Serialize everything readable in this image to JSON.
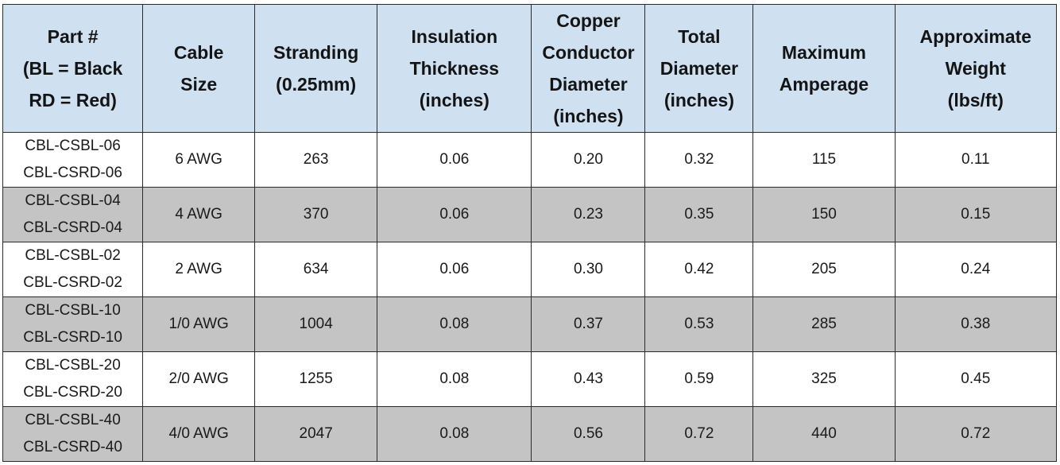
{
  "table": {
    "headers": [
      "Part #\n(BL = Black\nRD = Red)",
      "Cable\nSize",
      "Stranding\n(0.25mm)",
      "Insulation\nThickness\n(inches)",
      "Copper\nConductor\nDiameter\n(inches)",
      "Total\nDiameter\n(inches)",
      "Maximum\nAmperage",
      "Approximate\nWeight\n(lbs/ft)"
    ],
    "rows": [
      [
        "CBL-CSBL-06\nCBL-CSRD-06",
        "6 AWG",
        "263",
        "0.06",
        "0.20",
        "0.32",
        "115",
        "0.11"
      ],
      [
        "CBL-CSBL-04\nCBL-CSRD-04",
        "4 AWG",
        "370",
        "0.06",
        "0.23",
        "0.35",
        "150",
        "0.15"
      ],
      [
        "CBL-CSBL-02\nCBL-CSRD-02",
        "2 AWG",
        "634",
        "0.06",
        "0.30",
        "0.42",
        "205",
        "0.24"
      ],
      [
        "CBL-CSBL-10\nCBL-CSRD-10",
        "1/0 AWG",
        "1004",
        "0.08",
        "0.37",
        "0.53",
        "285",
        "0.38"
      ],
      [
        "CBL-CSBL-20\nCBL-CSRD-20",
        "2/0 AWG",
        "1255",
        "0.08",
        "0.43",
        "0.59",
        "325",
        "0.45"
      ],
      [
        "CBL-CSBL-40\nCBL-CSRD-40",
        "4/0 AWG",
        "2047",
        "0.08",
        "0.56",
        "0.72",
        "440",
        "0.72"
      ]
    ]
  },
  "colors": {
    "header_bg": "#cfe0f1",
    "row_alt_bg": "#c4c4c4",
    "row_bg": "#ffffff",
    "border": "#2b2b2b"
  }
}
